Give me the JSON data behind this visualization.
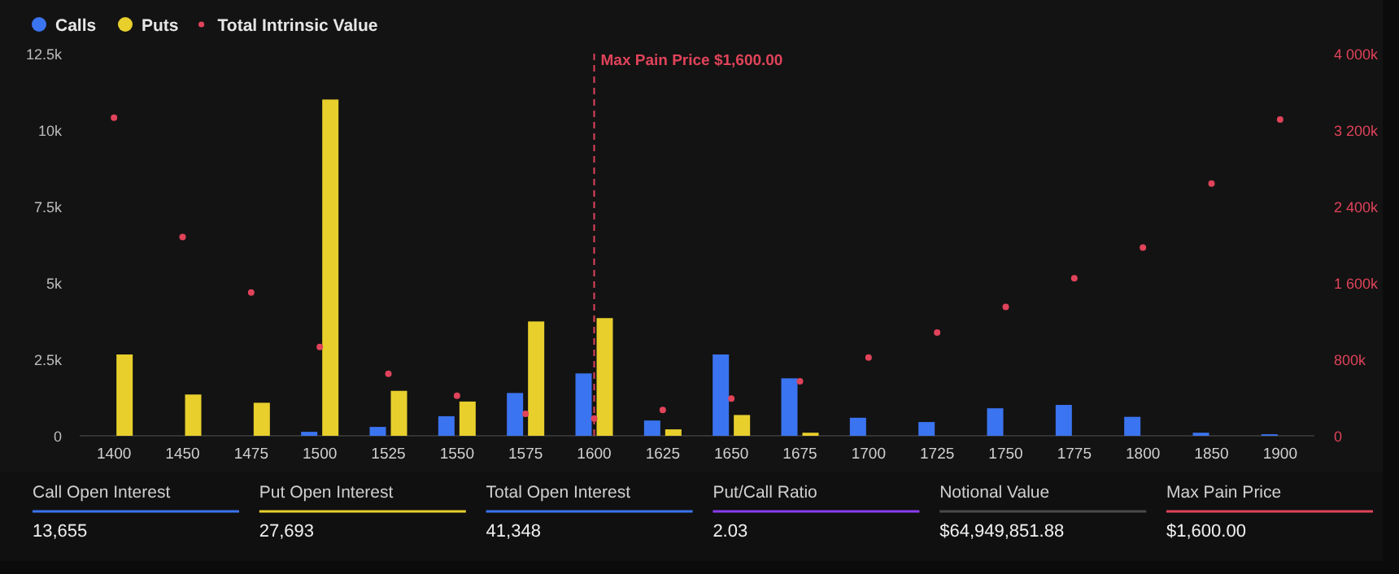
{
  "chart_data": [
    {
      "type": "bar",
      "categories": [
        "1400",
        "1450",
        "1475",
        "1500",
        "1525",
        "1550",
        "1575",
        "1600",
        "1625",
        "1650",
        "1675",
        "1700",
        "1725",
        "1750",
        "1775",
        "1800",
        "1850",
        "1900"
      ],
      "series": [
        {
          "name": "Calls",
          "color": "#3b74f0",
          "values": [
            null,
            null,
            null,
            130,
            290,
            640,
            1400,
            2040,
            500,
            2660,
            1880,
            590,
            450,
            900,
            1010,
            620,
            100,
            50
          ]
        },
        {
          "name": "Puts",
          "color": "#e8cf2c",
          "values": [
            2660,
            1350,
            1080,
            11000,
            1470,
            1120,
            3740,
            3850,
            210,
            680,
            100,
            null,
            null,
            null,
            null,
            null,
            null,
            null
          ]
        },
        {
          "name": "Total Intrinsic Value",
          "type": "scatter",
          "axis": "y2",
          "marker": "circle",
          "color": "#e0435a",
          "values": [
            3330000,
            2080000,
            1500000,
            930000,
            650000,
            420000,
            230000,
            180000,
            270000,
            390000,
            570000,
            820000,
            1080000,
            1350000,
            1650000,
            1970000,
            2640000,
            3310000
          ]
        }
      ],
      "ylim": [
        0,
        12500
      ],
      "yticks": [
        0,
        {
          "value": 2500,
          "label": "2.5k"
        },
        {
          "value": 5000,
          "label": "5k"
        },
        {
          "value": 7500,
          "label": "7.5k"
        },
        {
          "value": 10000,
          "label": "10k"
        },
        {
          "value": 12500,
          "label": "12.5k"
        }
      ],
      "y2lim": [
        0,
        4000000
      ],
      "y2ticks": [
        0,
        {
          "value": 800000,
          "label": "800k"
        },
        {
          "value": 1600000,
          "label": "1 600k"
        },
        {
          "value": 2400000,
          "label": "2 400k"
        },
        {
          "value": 3200000,
          "label": "3 200k"
        },
        {
          "value": 4000000,
          "label": "4 000k"
        }
      ],
      "legend": "top left",
      "ref_lines": [
        {
          "axis": "x",
          "value": "1600",
          "label": "Max Pain Price $1,600.00",
          "color": "#e0435a",
          "line_style": "dashed"
        }
      ]
    },
    {
      "type": "other",
      "categories": [
        "Call Open Interest",
        "Put Open Interest",
        "Total Open Interest",
        "Put/Call Ratio",
        "Notional Value",
        "Max Pain Price"
      ],
      "value_labels": [
        "13,655",
        "27,693",
        "41,348",
        "2.03",
        "$64,949,851.88",
        "$1,600.00"
      ],
      "colors": [
        "#3b74f0",
        "#e8cf2c",
        "#3b74f0",
        "#8a3cf0",
        "#4a4a4a",
        "#e0435a"
      ]
    }
  ]
}
